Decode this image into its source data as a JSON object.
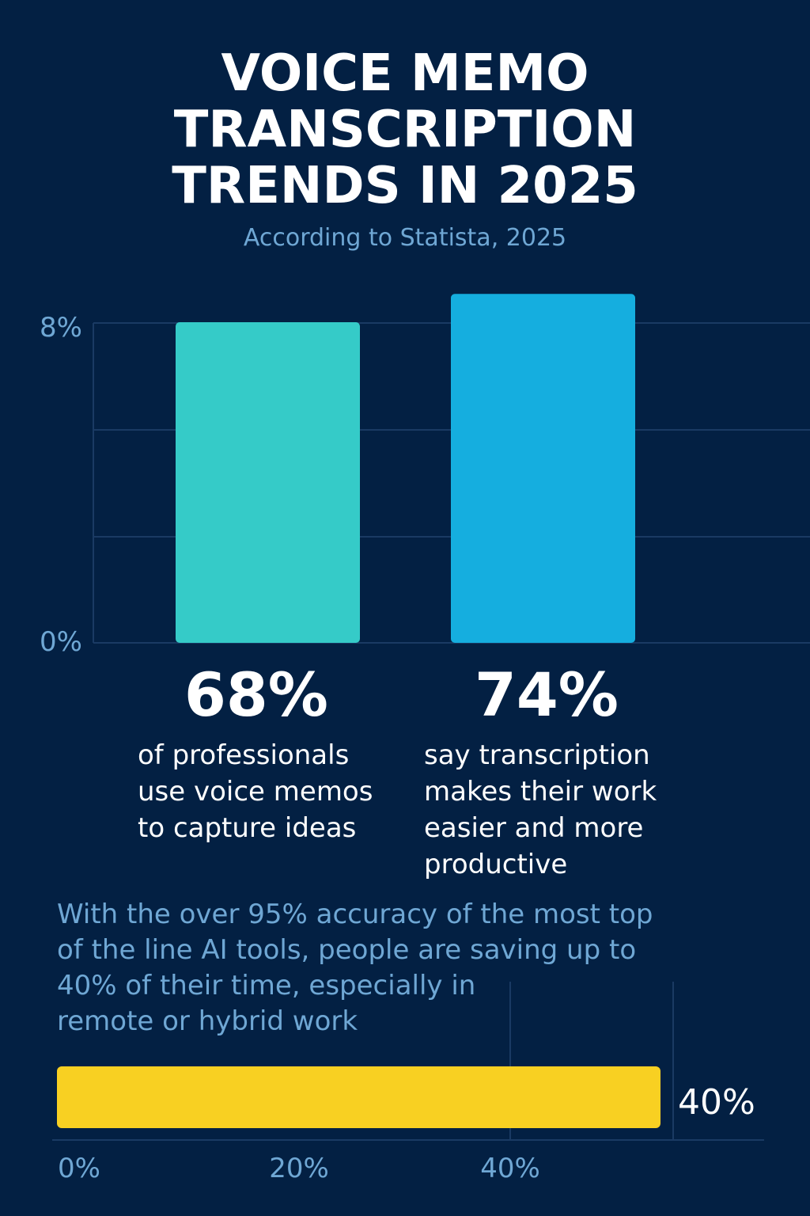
{
  "header": {
    "title_lines": [
      "VOICE MEMO",
      "TRANSCRIPTION",
      "TRENDS IN 2025"
    ],
    "subtitle": "According to Statista, 2025"
  },
  "colors": {
    "background": "#032043",
    "bar1": "#35cbc8",
    "bar2": "#15aedf",
    "progress": "#f8d022",
    "axis_text": "#6fa7d4",
    "grid": "#1a3a63"
  },
  "chart_data": [
    {
      "type": "bar",
      "categories": [
        "of professionals use voice memos to capture ideas",
        "say transcription makes their work easier and more productive"
      ],
      "values": [
        68,
        74
      ],
      "value_labels": [
        "68%",
        "74%"
      ],
      "y_tick_labels": [
        "8%",
        "0%"
      ],
      "grid": true
    },
    {
      "type": "bar",
      "orientation": "horizontal",
      "values": [
        40
      ],
      "value_label": "40%",
      "x_tick_labels": [
        "0%",
        "20%",
        "40%"
      ],
      "grid": true
    }
  ],
  "stats": [
    {
      "value": "68%",
      "desc_lines": [
        "of professionals",
        "use voice memos",
        "to capture ideas"
      ]
    },
    {
      "value": "74%",
      "desc_lines": [
        "say transcription",
        "makes their work",
        "easier and more",
        "productive"
      ]
    }
  ],
  "note_lines": [
    "With the over 95% accuracy of the most top",
    "of the line AI tools, people are saving up to",
    "40% of their time, especially in",
    "remote or hybrid work"
  ]
}
